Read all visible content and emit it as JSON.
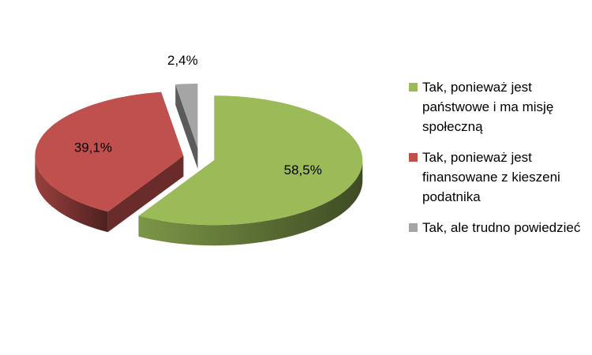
{
  "chart_data": {
    "type": "pie",
    "categories": [
      "Tak, ponieważ jest państwowe i ma misję społeczną",
      "Tak, ponieważ jest finansowane z kieszeni podatnika",
      "Tak, ale trudno powiedzieć"
    ],
    "values": [
      58.5,
      39.1,
      2.4
    ],
    "value_labels": [
      "58,5%",
      "39,1%",
      "2,4%"
    ],
    "colors": [
      "#9bbb59",
      "#c0504d",
      "#a5a5a5"
    ],
    "legend": "right"
  }
}
